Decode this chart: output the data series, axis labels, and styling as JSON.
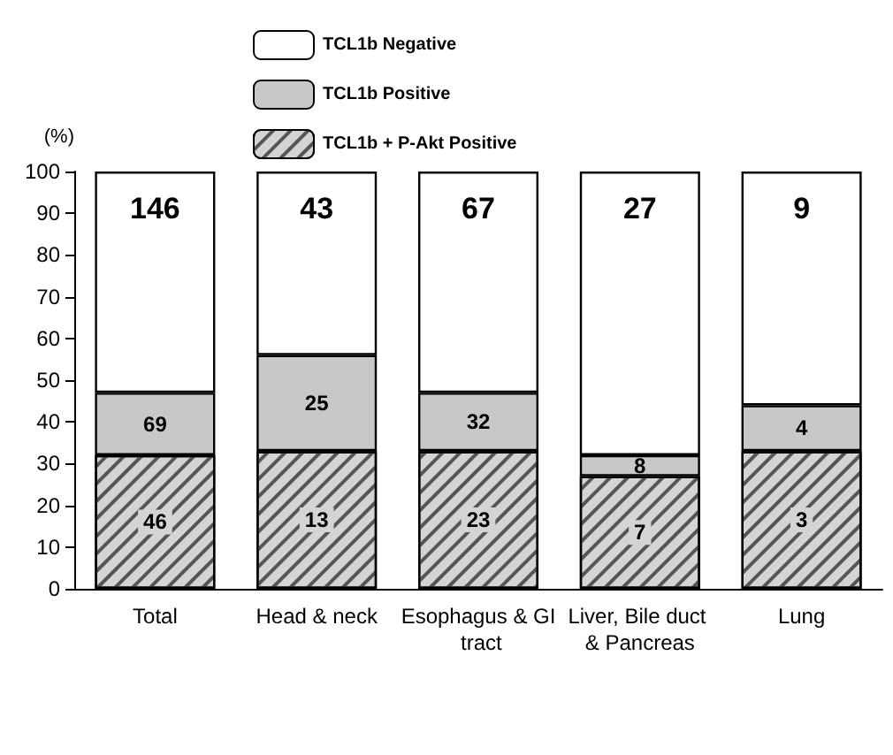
{
  "chart_data": {
    "type": "bar",
    "stacked": true,
    "ylabel": "(%)",
    "categories": [
      "Total",
      "Head & neck",
      "Esophagus & GI tract",
      "Liver, Bile duct & Pancreas",
      "Lung"
    ],
    "series": [
      {
        "name": "TCL1b + P-Akt Positive",
        "color": "#d4d4d4",
        "values": [
          32,
          33,
          33,
          27,
          33
        ]
      },
      {
        "name": "TCL1b Positive",
        "color": "#c8c8c8",
        "values": [
          15,
          23,
          14,
          5,
          11
        ]
      },
      {
        "name": "TCL1b Negative",
        "color": "#ffffff",
        "values": [
          53,
          44,
          53,
          68,
          56
        ]
      }
    ],
    "annotations": [
      {
        "text": "146",
        "x": "Total",
        "y": 100
      },
      {
        "text": "43",
        "x": "Head & neck",
        "y": 100
      },
      {
        "text": "67",
        "x": "Esophagus & GI tract",
        "y": 100
      },
      {
        "text": "27",
        "x": "Liver, Bile duct & Pancreas",
        "y": 100
      },
      {
        "text": "9",
        "x": "Lung",
        "y": 100
      },
      {
        "text": "69",
        "x": "Total",
        "y": 47
      },
      {
        "text": "25",
        "x": "Head & neck",
        "y": 56
      },
      {
        "text": "32",
        "x": "Esophagus & GI tract",
        "y": 47
      },
      {
        "text": "8",
        "x": "Liver, Bile duct & Pancreas",
        "y": 32
      },
      {
        "text": "4",
        "x": "Lung",
        "y": 44
      },
      {
        "text": "46",
        "x": "Total",
        "y": 32
      },
      {
        "text": "13",
        "x": "Head & neck",
        "y": 33
      },
      {
        "text": "23",
        "x": "Esophagus & GI tract",
        "y": 33
      },
      {
        "text": "7",
        "x": "Liver, Bile duct & Pancreas",
        "y": 27
      },
      {
        "text": "3",
        "x": "Lung",
        "y": 33
      }
    ],
    "ylim": [
      0,
      100
    ],
    "yticks": [
      0,
      10,
      20,
      30,
      40,
      50,
      60,
      70,
      80,
      90,
      100
    ],
    "grid": false,
    "legend": "top left"
  }
}
